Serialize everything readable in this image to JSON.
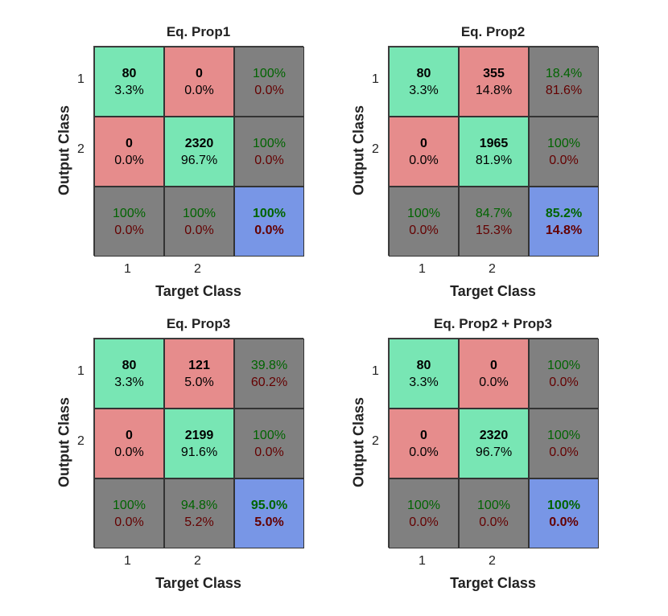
{
  "chart_data": [
    {
      "type": "heatmap",
      "title": "Eq. Prop1",
      "xlabel": "Target Class",
      "ylabel": "Output Class",
      "x_ticks": [
        "1",
        "2"
      ],
      "y_ticks": [
        "1",
        "2"
      ],
      "counts": [
        [
          80,
          0
        ],
        [
          0,
          2320
        ]
      ],
      "cell_pct": [
        [
          "3.3%",
          "0.0%"
        ],
        [
          "0.0%",
          "96.7%"
        ]
      ],
      "row_summary": [
        [
          "100%",
          "0.0%"
        ],
        [
          "100%",
          "0.0%"
        ]
      ],
      "col_summary": [
        [
          "100%",
          "0.0%"
        ],
        [
          "100%",
          "0.0%"
        ]
      ],
      "overall": [
        "100%",
        "0.0%"
      ]
    },
    {
      "type": "heatmap",
      "title": "Eq. Prop2",
      "xlabel": "Target Class",
      "ylabel": "Output Class",
      "x_ticks": [
        "1",
        "2"
      ],
      "y_ticks": [
        "1",
        "2"
      ],
      "counts": [
        [
          80,
          355
        ],
        [
          0,
          1965
        ]
      ],
      "cell_pct": [
        [
          "3.3%",
          "14.8%"
        ],
        [
          "0.0%",
          "81.9%"
        ]
      ],
      "row_summary": [
        [
          "18.4%",
          "81.6%"
        ],
        [
          "100%",
          "0.0%"
        ]
      ],
      "col_summary": [
        [
          "100%",
          "0.0%"
        ],
        [
          "84.7%",
          "15.3%"
        ]
      ],
      "overall": [
        "85.2%",
        "14.8%"
      ]
    },
    {
      "type": "heatmap",
      "title": "Eq. Prop3",
      "xlabel": "Target Class",
      "ylabel": "Output Class",
      "x_ticks": [
        "1",
        "2"
      ],
      "y_ticks": [
        "1",
        "2"
      ],
      "counts": [
        [
          80,
          121
        ],
        [
          0,
          2199
        ]
      ],
      "cell_pct": [
        [
          "3.3%",
          "5.0%"
        ],
        [
          "0.0%",
          "91.6%"
        ]
      ],
      "row_summary": [
        [
          "39.8%",
          "60.2%"
        ],
        [
          "100%",
          "0.0%"
        ]
      ],
      "col_summary": [
        [
          "100%",
          "0.0%"
        ],
        [
          "94.8%",
          "5.2%"
        ]
      ],
      "overall": [
        "95.0%",
        "5.0%"
      ]
    },
    {
      "type": "heatmap",
      "title": "Eq. Prop2 + Prop3",
      "xlabel": "Target Class",
      "ylabel": "Output Class",
      "x_ticks": [
        "1",
        "2"
      ],
      "y_ticks": [
        "1",
        "2"
      ],
      "counts": [
        [
          80,
          0
        ],
        [
          0,
          2320
        ]
      ],
      "cell_pct": [
        [
          "3.3%",
          "0.0%"
        ],
        [
          "0.0%",
          "96.7%"
        ]
      ],
      "row_summary": [
        [
          "100%",
          "0.0%"
        ],
        [
          "100%",
          "0.0%"
        ]
      ],
      "col_summary": [
        [
          "100%",
          "0.0%"
        ],
        [
          "100%",
          "0.0%"
        ]
      ],
      "overall": [
        "100%",
        "0.0%"
      ]
    }
  ],
  "colors": {
    "correct": "#78e6b4",
    "incorrect": "#e68c8c",
    "summary": "#808080",
    "overall": "#7896e6",
    "pct_good": "#006400",
    "pct_bad": "#640000"
  }
}
